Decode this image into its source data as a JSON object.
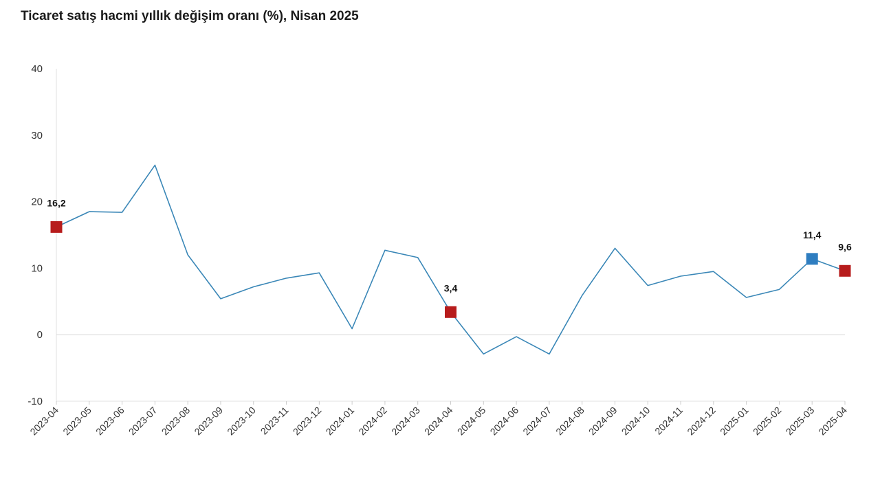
{
  "title": "Ticaret satış hacmi yıllık değişim oranı (%), Nisan 2025",
  "chart_data": {
    "type": "line",
    "title": "Ticaret satış hacmi yıllık değişim oranı (%), Nisan 2025",
    "xlabel": "",
    "ylabel": "",
    "ylim": [
      -10,
      40
    ],
    "yticks": [
      -10,
      0,
      10,
      20,
      30,
      40
    ],
    "grid": "zero-line only",
    "legend": "none",
    "categories": [
      "2023-04",
      "2023-05",
      "2023-06",
      "2023-07",
      "2023-08",
      "2023-09",
      "2023-10",
      "2023-11",
      "2023-12",
      "2024-01",
      "2024-02",
      "2024-03",
      "2024-04",
      "2024-05",
      "2024-06",
      "2024-07",
      "2024-08",
      "2024-09",
      "2024-10",
      "2024-11",
      "2024-12",
      "2025-01",
      "2025-02",
      "2025-03",
      "2025-04"
    ],
    "series": [
      {
        "color": "#3a87b7",
        "values": [
          16.2,
          18.5,
          18.4,
          25.5,
          12.0,
          5.4,
          7.2,
          8.5,
          9.3,
          0.9,
          12.7,
          11.6,
          3.4,
          -2.9,
          -0.3,
          -2.9,
          5.9,
          13.0,
          7.4,
          8.8,
          9.5,
          5.6,
          6.8,
          11.4,
          9.6
        ]
      }
    ],
    "highlighted_points": [
      {
        "category": "2023-04",
        "label": "16,2",
        "color": "#b71c1c"
      },
      {
        "category": "2024-04",
        "label": "3,4",
        "color": "#b71c1c"
      },
      {
        "category": "2025-03",
        "label": "11,4",
        "color": "#2e7dc0"
      },
      {
        "category": "2025-04",
        "label": "9,6",
        "color": "#b71c1c"
      }
    ]
  }
}
